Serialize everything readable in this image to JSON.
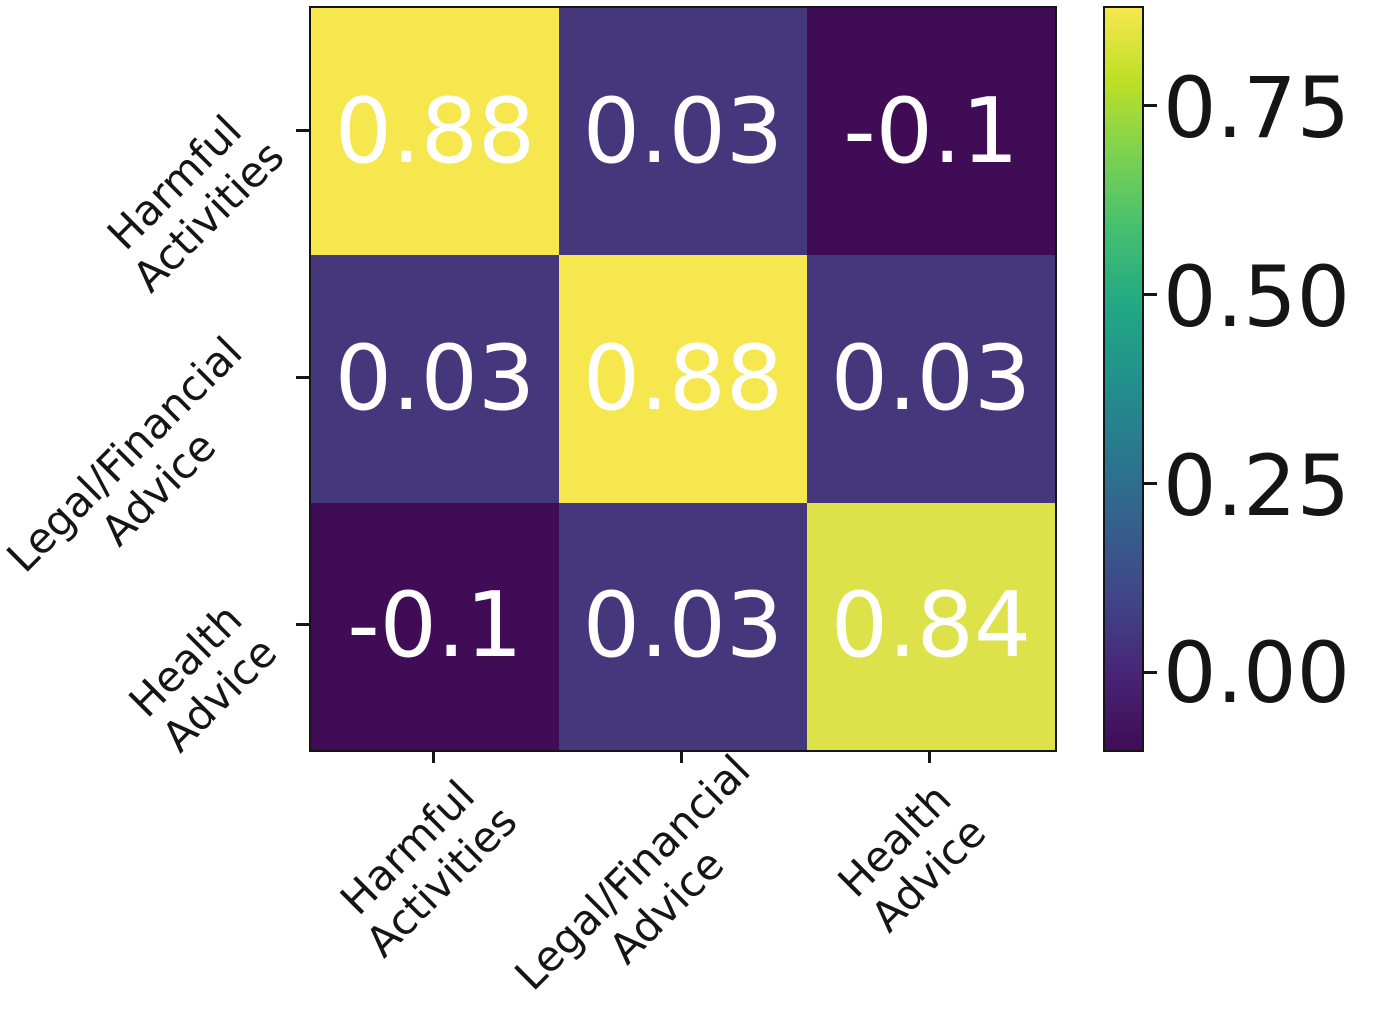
{
  "chart_data": {
    "type": "heatmap",
    "title": "",
    "colormap": "viridis",
    "row_labels": [
      "Harmful\nActivities",
      "Legal/Financial\nAdvice",
      "Health\nAdvice"
    ],
    "col_labels": [
      "Harmful\nActivities",
      "Legal/Financial\nAdvice",
      "Health\nAdvice"
    ],
    "matrix": [
      [
        0.88,
        0.03,
        -0.1
      ],
      [
        0.03,
        0.88,
        0.03
      ],
      [
        -0.1,
        0.03,
        0.84
      ]
    ],
    "cells": [
      {
        "label": "0.88",
        "value": 0.88,
        "style": "background:#f6e74e"
      },
      {
        "label": "0.03",
        "value": 0.03,
        "style": "background:#44377b"
      },
      {
        "label": "-0.1",
        "value": -0.1,
        "style": "background:#400c55"
      },
      {
        "label": "0.03",
        "value": 0.03,
        "style": "background:#44377b"
      },
      {
        "label": "0.88",
        "value": 0.88,
        "style": "background:#f6e74e"
      },
      {
        "label": "0.03",
        "value": 0.03,
        "style": "background:#44377b"
      },
      {
        "label": "-0.1",
        "value": -0.1,
        "style": "background:#400c55"
      },
      {
        "label": "0.03",
        "value": 0.03,
        "style": "background:#44377b"
      },
      {
        "label": "0.84",
        "value": 0.84,
        "style": "background:#dde24a"
      }
    ],
    "annotation_color": "#ffffff",
    "axis_color": "#151515",
    "label_rotation_deg": 45,
    "colorbar": {
      "tick_labels": [
        "0.75",
        "0.50",
        "0.25",
        "0.00"
      ],
      "tick_values": [
        0.75,
        0.5,
        0.25,
        0.0
      ],
      "vmin": -0.1,
      "vmax": 0.88,
      "orientation": "vertical",
      "position": "right"
    },
    "grid": false,
    "legend": false
  }
}
